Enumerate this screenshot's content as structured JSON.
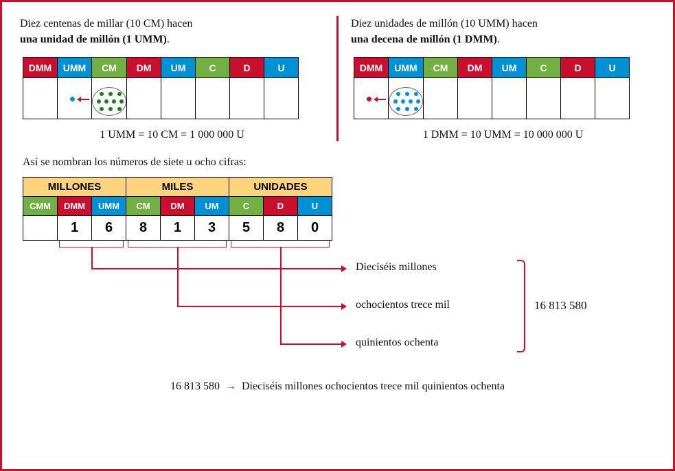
{
  "panels": {
    "left": {
      "intro1": "Diez centenas de millar (10 CM) hacen",
      "intro2_bold": "una unidad de millón (1 UMM)",
      "intro2_end": ".",
      "equation": "1 UMM = 10 CM = 1 000 000 U",
      "dot_color": "#1a7f1a",
      "single_dot_color": "#0091D4"
    },
    "right": {
      "intro1": "Diez unidades de millón (10 UMM) hacen",
      "intro2_bold": "una decena de millón (1 DMM)",
      "intro2_end": ".",
      "equation": "1 DMM = 10 UMM = 10 000 000 U",
      "dot_color": "#0091D4",
      "single_dot_color": "#C8102E"
    }
  },
  "pv_headers": [
    {
      "label": "DMM",
      "color": "c-red",
      "w": 50
    },
    {
      "label": "UMM",
      "color": "c-blue",
      "w": 50
    },
    {
      "label": "CM",
      "color": "c-green",
      "w": 50
    },
    {
      "label": "DM",
      "color": "c-red",
      "w": 50
    },
    {
      "label": "UM",
      "color": "c-blue",
      "w": 50
    },
    {
      "label": "C",
      "color": "c-green",
      "w": 50
    },
    {
      "label": "D",
      "color": "c-red",
      "w": 50
    },
    {
      "label": "U",
      "color": "c-blue",
      "w": 50
    }
  ],
  "mid_text": "Así se nombran los números de siete u ocho cifras:",
  "groups": [
    {
      "label": "MILLONES",
      "span": 3
    },
    {
      "label": "MILES",
      "span": 3
    },
    {
      "label": "UNIDADES",
      "span": 3
    }
  ],
  "sub_headers": [
    {
      "label": "CMM",
      "color": "c-green"
    },
    {
      "label": "DMM",
      "color": "c-red"
    },
    {
      "label": "UMM",
      "color": "c-blue"
    },
    {
      "label": "CM",
      "color": "c-green"
    },
    {
      "label": "DM",
      "color": "c-red"
    },
    {
      "label": "UM",
      "color": "c-blue"
    },
    {
      "label": "C",
      "color": "c-green"
    },
    {
      "label": "D",
      "color": "c-red"
    },
    {
      "label": "U",
      "color": "c-blue"
    }
  ],
  "digits": [
    "",
    "1",
    "6",
    "8",
    "1",
    "3",
    "5",
    "8",
    "0"
  ],
  "words": {
    "millones": "Dieciséis millones",
    "miles": "ochocientos trece mil",
    "unidades": "quinientos ochenta"
  },
  "number_compact": "16 813 580",
  "bottom": {
    "num": "16 813 580",
    "text": "Dieciséis millones ochocientos trece mil quinientos ochenta"
  },
  "colors": {
    "red": "#C8102E",
    "blue": "#0091D4",
    "green": "#73B043",
    "yellow": "#FDD47E"
  }
}
